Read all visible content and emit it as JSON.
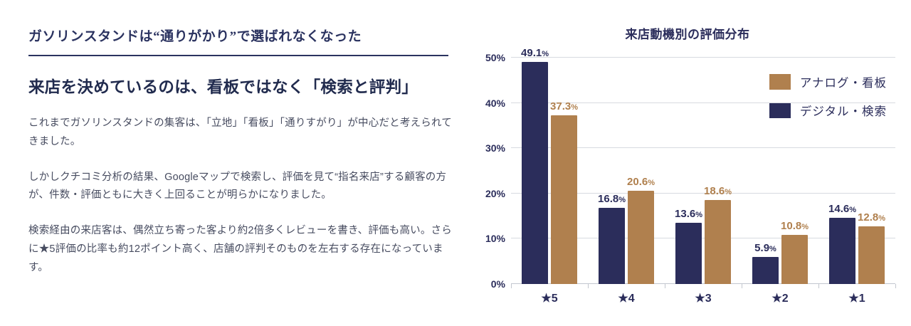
{
  "left": {
    "kicker": "ガソリンスタンドは“通りがかり”で選ばれなくなった",
    "headline": "来店を決めているのは、看板ではなく「検索と評判」",
    "paragraphs": [
      "これまでガソリンスタンドの集客は、「立地」「看板」「通りすがり」が中心だと考えられてきました。",
      "しかしクチコミ分析の結果、Googleマップで検索し、評価を見て“指名来店”する顧客の方が、件数・評価ともに大きく上回ることが明らかになりました。",
      "検索経由の来店客は、偶然立ち寄った客より約2倍多くレビューを書き、評価も高い。さらに★5評価の比率も約12ポイント高く、店舗の評判そのものを左右する存在になっています。"
    ]
  },
  "colors": {
    "navy": "#2b2d5b",
    "brown": "#b0804e",
    "grid": "#d7dae0",
    "text": "#474c60"
  },
  "chart_data": {
    "type": "bar",
    "title": "来店動機別の評価分布",
    "categories": [
      "★5",
      "★4",
      "★3",
      "★2",
      "★1"
    ],
    "series": [
      {
        "key": "digital-search",
        "name": "デジタル・検索",
        "color": "#2b2d5b",
        "values": [
          49.1,
          16.8,
          13.6,
          5.9,
          14.6
        ]
      },
      {
        "key": "analog-signboard",
        "name": "アナログ・看板",
        "color": "#b0804e",
        "values": [
          37.3,
          20.6,
          18.6,
          10.8,
          12.8
        ]
      }
    ],
    "legend_order": [
      "アナログ・看板",
      "デジタル・検索"
    ],
    "legend_position": "top-right",
    "ylim": [
      0,
      50
    ],
    "yticks": [
      0,
      10,
      20,
      30,
      40,
      50
    ],
    "ytick_suffix": "%",
    "grid": true
  }
}
